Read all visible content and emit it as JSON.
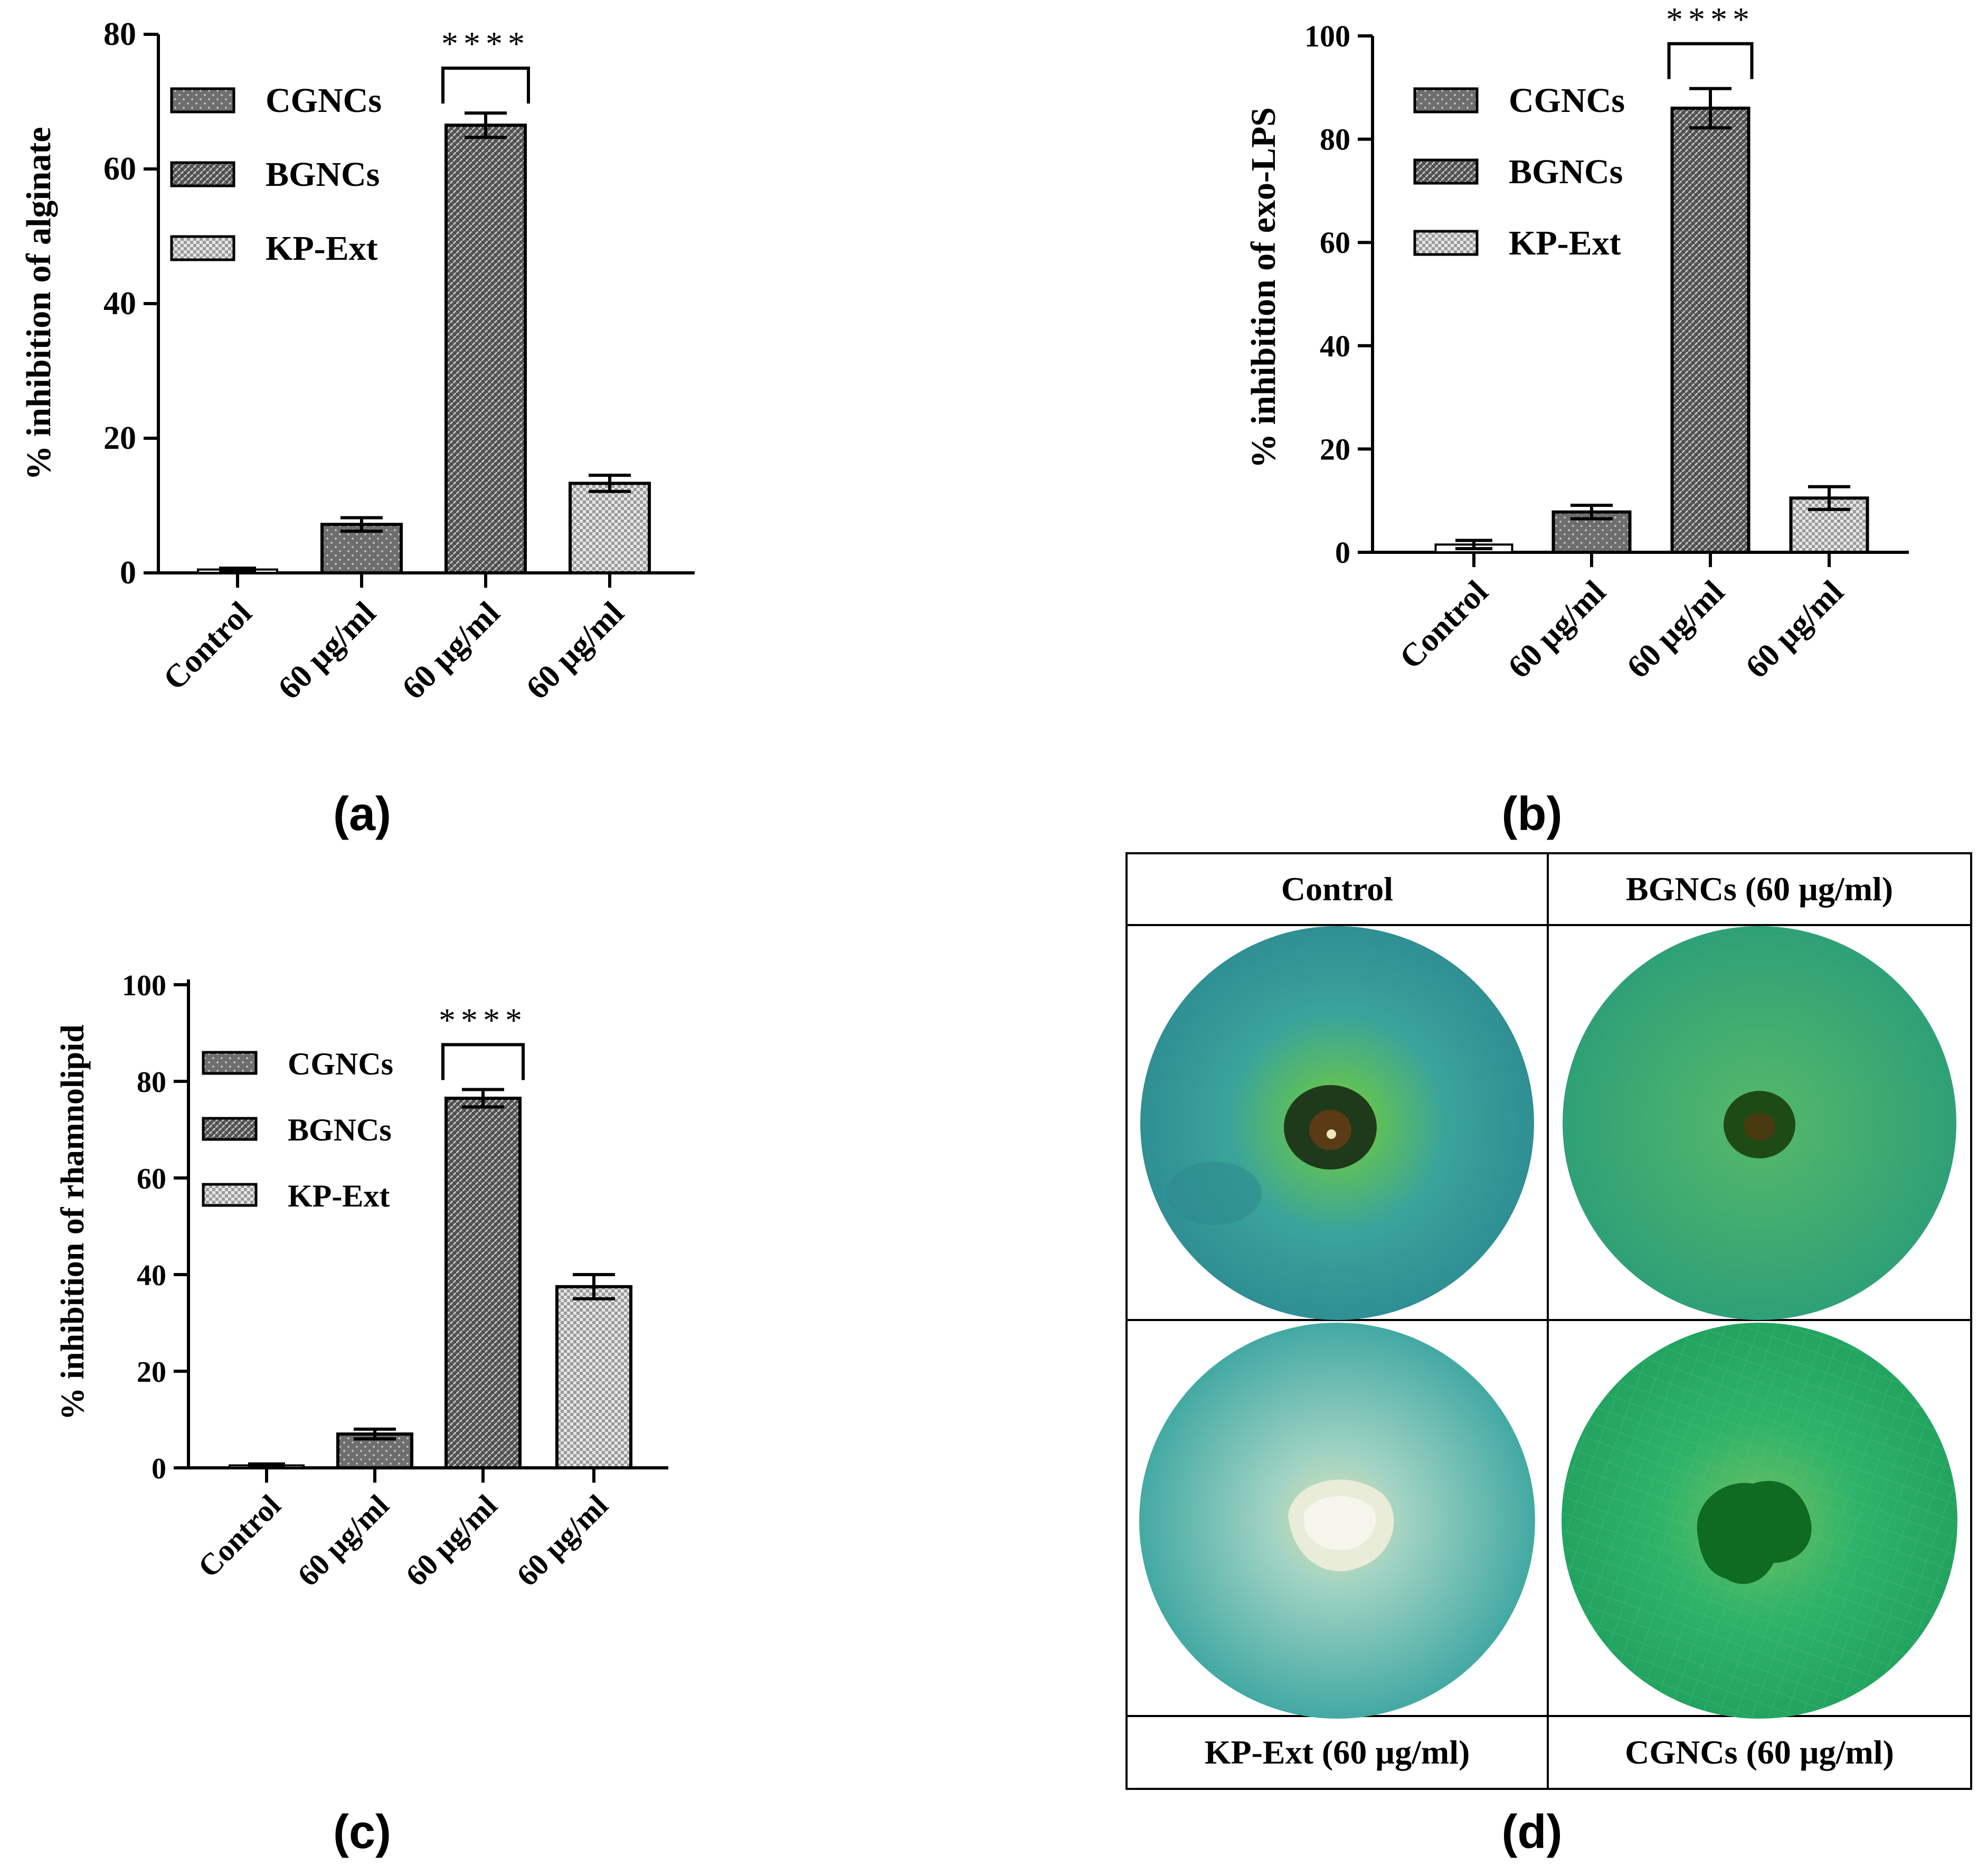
{
  "chart_data": [
    {
      "panel": "(a)",
      "type": "bar",
      "ylabel": "% inhibition of alginate",
      "ylim": [
        0,
        80
      ],
      "yticks": [
        0,
        20,
        40,
        60,
        80
      ],
      "categories": [
        "Control",
        "60 µg/ml",
        "60 µg/ml",
        "60 µg/ml"
      ],
      "groups": [
        "Control",
        "CGNCs",
        "BGNCs",
        "KP-Ext"
      ],
      "values": [
        0.5,
        7.2,
        66.5,
        13.3
      ],
      "errors": [
        0.2,
        1.0,
        1.8,
        1.2
      ],
      "legend": [
        "CGNCs",
        "BGNCs",
        "KP-Ext"
      ],
      "significance": {
        "label": "****",
        "bar_index": 2
      }
    },
    {
      "panel": "(b)",
      "type": "bar",
      "ylabel": "% inhibition of exo-LPS",
      "ylim": [
        0,
        100
      ],
      "yticks": [
        0,
        20,
        40,
        60,
        80,
        100
      ],
      "categories": [
        "Control",
        "60 µg/ml",
        "60 µg/ml",
        "60 µg/ml"
      ],
      "groups": [
        "Control",
        "CGNCs",
        "BGNCs",
        "KP-Ext"
      ],
      "values": [
        1.5,
        7.8,
        86.0,
        10.5
      ],
      "errors": [
        0.8,
        1.3,
        3.8,
        2.2
      ],
      "legend": [
        "CGNCs",
        "BGNCs",
        "KP-Ext"
      ],
      "significance": {
        "label": "****",
        "bar_index": 2
      }
    },
    {
      "panel": "(c)",
      "type": "bar",
      "ylabel": "% inhibition of rhamnolipid",
      "ylim": [
        0,
        100
      ],
      "yticks": [
        0,
        20,
        40,
        60,
        80,
        100
      ],
      "categories": [
        "Control",
        "60 µg/ml",
        "60 µg/ml",
        "60 µg/ml"
      ],
      "groups": [
        "Control",
        "CGNCs",
        "BGNCs",
        "KP-Ext"
      ],
      "values": [
        0.5,
        7.0,
        76.5,
        37.5
      ],
      "errors": [
        0.3,
        1.0,
        1.8,
        2.5
      ],
      "legend": [
        "CGNCs",
        "BGNCs",
        "KP-Ext"
      ],
      "significance": {
        "label": "****",
        "bar_index": 2
      }
    }
  ],
  "photo_panel": {
    "label": "(d)",
    "cells": [
      "Control",
      "BGNCs (60 µg/ml)",
      "KP-Ext (60 µg/ml)",
      "CGNCs (60 µg/ml)"
    ]
  },
  "colors": {
    "cgncs": "#6e6e6e",
    "bgncs": "#5c5c5c",
    "kpext": "#d9d9d9",
    "axis": "#000000"
  }
}
